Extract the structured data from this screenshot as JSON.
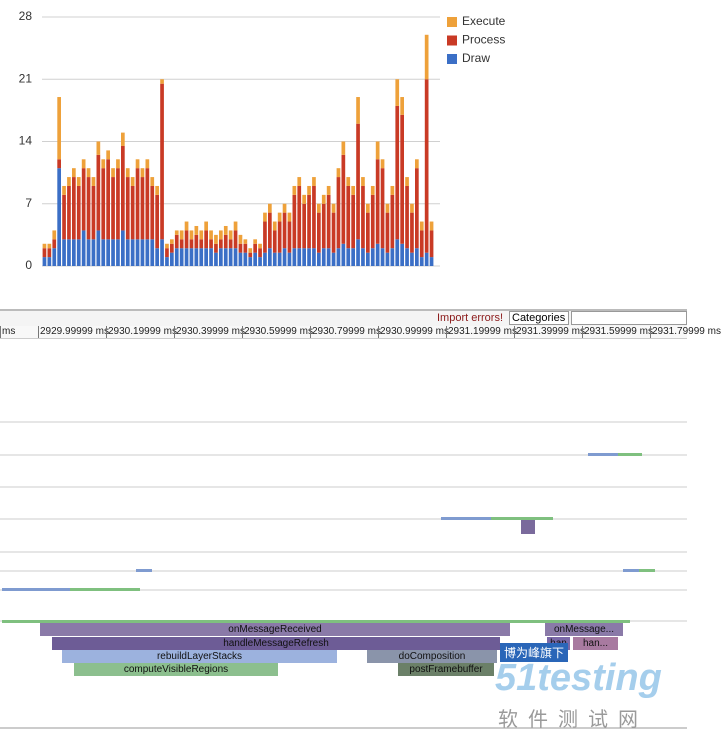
{
  "chart_data": {
    "type": "bar",
    "stacked": true,
    "grid": true,
    "legend": "right",
    "categories": [
      null,
      null,
      null,
      null,
      null,
      null,
      null,
      null,
      null,
      null,
      null,
      null,
      null,
      null,
      null,
      null,
      null,
      null,
      null,
      null,
      null,
      null,
      null,
      null,
      null,
      null,
      null,
      null,
      null,
      null,
      null,
      null,
      null,
      null,
      null,
      null,
      null,
      null,
      null,
      null,
      null,
      null,
      null,
      null,
      null,
      null,
      null,
      null,
      null,
      null,
      null,
      null,
      null,
      null,
      null,
      null,
      null,
      null,
      null,
      null,
      null,
      null,
      null,
      null,
      null,
      null,
      null,
      null,
      null,
      null,
      null,
      null,
      null,
      null,
      null,
      null,
      null,
      null,
      null,
      null
    ],
    "ylim": [
      0,
      28
    ],
    "yticks": [
      0,
      7,
      14,
      21,
      28
    ],
    "series": [
      {
        "name": "Draw",
        "color": "#3b6fc6",
        "values": [
          1,
          1,
          2,
          11,
          3,
          3,
          3,
          3,
          4,
          3,
          3,
          4,
          3,
          3,
          3,
          3,
          4,
          3,
          3,
          3,
          3,
          3,
          3,
          2,
          3,
          1,
          1.5,
          2,
          2,
          2,
          2,
          2,
          2,
          2,
          2,
          1.5,
          2,
          2,
          2,
          2,
          1.5,
          1.5,
          1,
          1.5,
          1,
          1.5,
          2,
          1.5,
          1.5,
          2,
          1.5,
          2,
          2,
          2,
          2,
          2,
          1.5,
          2,
          2,
          1.5,
          2,
          2.5,
          2,
          2,
          3,
          2,
          1.5,
          2,
          2.5,
          2,
          1.5,
          2,
          3,
          2.5,
          2,
          1.5,
          2,
          1,
          1.5,
          1
        ]
      },
      {
        "name": "Process",
        "color": "#c93a25",
        "values": [
          1,
          1,
          1,
          1,
          5,
          6,
          7,
          6,
          7,
          7,
          6,
          8.5,
          8,
          9,
          7,
          8,
          9.5,
          7,
          6,
          8,
          7,
          8,
          6,
          6,
          17.5,
          1,
          1,
          1.5,
          1,
          2,
          1,
          1.5,
          1,
          2,
          1,
          1,
          1,
          1.5,
          1,
          2,
          1,
          1,
          0.5,
          1,
          1,
          3.5,
          4,
          2.5,
          3.5,
          4,
          3.5,
          6,
          7,
          5,
          6,
          7,
          4.5,
          5,
          6,
          4.5,
          8,
          10,
          7,
          6,
          13,
          7,
          4.5,
          6,
          9.5,
          9,
          4.5,
          6,
          15,
          14.5,
          7,
          4.5,
          9,
          3,
          19.5,
          3
        ]
      },
      {
        "name": "Execute",
        "color": "#eea13a",
        "values": [
          0.5,
          0.5,
          1,
          7,
          1,
          1,
          1,
          1,
          1,
          1,
          1,
          1.5,
          1,
          1,
          1,
          1,
          1.5,
          1,
          1,
          1,
          1,
          1,
          1,
          1,
          0.5,
          0.5,
          0.5,
          0.5,
          1,
          1,
          1,
          1,
          1,
          1,
          1,
          1,
          1,
          1,
          1,
          1,
          1,
          0.5,
          0.5,
          0.5,
          0.5,
          1,
          1,
          1,
          1,
          1,
          1,
          1,
          1,
          1,
          1,
          1,
          1,
          1,
          1,
          1,
          1,
          1.5,
          1,
          1,
          3,
          1,
          1,
          1,
          2,
          1,
          1,
          1,
          3,
          2,
          1,
          1,
          1,
          1,
          5,
          1
        ]
      }
    ]
  },
  "toolbar": {
    "import_errors": "Import errors!",
    "categories": "Categories"
  },
  "ruler": [
    "ms",
    "2929.99999 ms",
    "2930.19999 ms",
    "2930.39999 ms",
    "2930.59999 ms",
    "2930.79999 ms",
    "2930.99999 ms",
    "2931.19999 ms",
    "2931.39999 ms",
    "2931.59999 ms",
    "2931.79999 ms"
  ],
  "slices": [
    "onMessageReceived",
    "handleMessageRefresh",
    "rebuildLayerStacks",
    "computeVisibleRegions",
    "doComposition",
    "postFramebuffer",
    "onMessage...",
    "han",
    "han..."
  ],
  "watermark": {
    "badge": "博为峰旗下",
    "brand": "51testing",
    "subtitle": "软件测试网"
  }
}
